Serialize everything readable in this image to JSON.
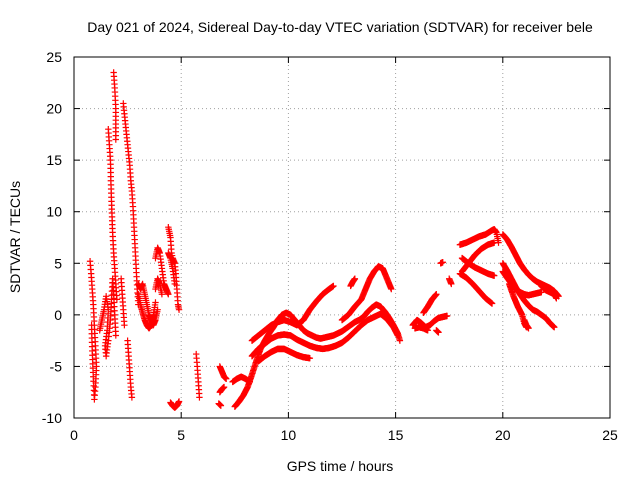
{
  "chart_data": {
    "type": "scatter",
    "title": "Day 021 of 2024, Sidereal Day-to-day VTEC variation (SDTVAR) for receiver bele",
    "xlabel": "GPS time / hours",
    "ylabel": "SDTVAR / TECUs",
    "xlim": [
      0,
      25
    ],
    "ylim": [
      -10,
      25
    ],
    "xticks": [
      0,
      5,
      10,
      15,
      20,
      25
    ],
    "yticks": [
      -10,
      -5,
      0,
      5,
      10,
      15,
      20,
      25
    ],
    "grid": true,
    "marker": "+",
    "color": "#ff0000",
    "segments": [
      [
        [
          0.75,
          5.2
        ],
        [
          0.8,
          4.0
        ],
        [
          0.85,
          2.5
        ],
        [
          0.9,
          1.0
        ],
        [
          0.95,
          -1.0
        ],
        [
          1.0,
          -3.0
        ],
        [
          1.05,
          -5.0
        ],
        [
          1.0,
          -7.0
        ],
        [
          0.95,
          -8.2
        ],
        [
          0.9,
          -6.0
        ],
        [
          0.85,
          -3.5
        ],
        [
          0.82,
          -1.0
        ]
      ],
      [
        [
          1.2,
          -1.5
        ],
        [
          1.3,
          -0.5
        ],
        [
          1.4,
          0.5
        ],
        [
          1.5,
          1.8
        ],
        [
          1.6,
          0.5
        ],
        [
          1.55,
          -1.5
        ],
        [
          1.45,
          -3.0
        ],
        [
          1.5,
          -4.0
        ],
        [
          1.6,
          -2.5
        ],
        [
          1.7,
          -0.5
        ],
        [
          1.75,
          1.5
        ],
        [
          1.8,
          3.5
        ],
        [
          1.85,
          2.0
        ],
        [
          1.9,
          0.0
        ],
        [
          1.95,
          -2.0
        ]
      ],
      [
        [
          1.6,
          18.0
        ],
        [
          1.65,
          16.5
        ],
        [
          1.7,
          15.0
        ],
        [
          1.72,
          13.0
        ],
        [
          1.75,
          11.0
        ],
        [
          1.8,
          8.0
        ],
        [
          1.85,
          6.0
        ],
        [
          1.9,
          4.5
        ],
        [
          1.95,
          3.0
        ],
        [
          2.0,
          1.5
        ]
      ],
      [
        [
          1.85,
          23.5
        ],
        [
          1.9,
          22.0
        ],
        [
          1.95,
          20.0
        ],
        [
          1.95,
          17.0
        ]
      ],
      [
        [
          2.3,
          20.5
        ],
        [
          2.35,
          19.5
        ],
        [
          2.4,
          18.5
        ],
        [
          2.45,
          17.5
        ],
        [
          2.5,
          16.5
        ],
        [
          2.55,
          15.5
        ],
        [
          2.6,
          14.5
        ],
        [
          2.65,
          13.0
        ],
        [
          2.7,
          12.0
        ],
        [
          2.75,
          10.5
        ],
        [
          2.8,
          8.5
        ],
        [
          2.85,
          6.5
        ],
        [
          2.9,
          4.5
        ],
        [
          2.95,
          2.5
        ],
        [
          3.0,
          1.0
        ]
      ],
      [
        [
          2.5,
          -2.5
        ],
        [
          2.55,
          -4.0
        ],
        [
          2.6,
          -5.5
        ],
        [
          2.65,
          -7.0
        ],
        [
          2.7,
          -8.0
        ]
      ],
      [
        [
          2.2,
          3.5
        ],
        [
          2.25,
          2.0
        ],
        [
          2.3,
          0.5
        ],
        [
          2.35,
          -1.0
        ]
      ],
      [
        [
          3.0,
          3.0
        ],
        [
          3.1,
          2.5
        ],
        [
          3.2,
          3.0
        ],
        [
          3.3,
          2.0
        ],
        [
          3.4,
          1.0
        ],
        [
          3.5,
          0.0
        ],
        [
          3.6,
          -0.5
        ],
        [
          3.7,
          -1.0
        ],
        [
          3.8,
          -0.5
        ],
        [
          3.9,
          0.5
        ]
      ],
      [
        [
          3.0,
          2.0
        ],
        [
          3.1,
          1.0
        ],
        [
          3.2,
          0.2
        ],
        [
          3.3,
          -0.5
        ],
        [
          3.4,
          -1.0
        ],
        [
          3.5,
          -1.3
        ],
        [
          3.6,
          -1.0
        ],
        [
          3.7,
          0.0
        ],
        [
          3.8,
          1.2
        ]
      ],
      [
        [
          3.8,
          5.5
        ],
        [
          3.9,
          6.5
        ],
        [
          4.0,
          6.0
        ],
        [
          4.1,
          4.5
        ],
        [
          4.2,
          3.0
        ],
        [
          4.3,
          2.5
        ],
        [
          4.4,
          2.0
        ]
      ],
      [
        [
          3.8,
          2.5
        ],
        [
          3.9,
          3.5
        ],
        [
          4.0,
          3.0
        ],
        [
          4.1,
          2.0
        ]
      ],
      [
        [
          4.4,
          8.5
        ],
        [
          4.5,
          7.5
        ],
        [
          4.55,
          6.0
        ],
        [
          4.6,
          5.5
        ],
        [
          4.7,
          5.0
        ],
        [
          4.75,
          4.0
        ],
        [
          4.8,
          2.5
        ],
        [
          4.85,
          1.0
        ],
        [
          4.9,
          0.5
        ]
      ],
      [
        [
          4.4,
          6.0
        ],
        [
          4.5,
          5.5
        ],
        [
          4.6,
          4.5
        ],
        [
          4.7,
          3.0
        ]
      ],
      [
        [
          4.5,
          -8.5
        ],
        [
          4.6,
          -8.8
        ],
        [
          4.7,
          -9.0
        ],
        [
          4.8,
          -8.8
        ],
        [
          4.9,
          -8.4
        ]
      ],
      [
        [
          5.7,
          -3.8
        ],
        [
          5.75,
          -5.0
        ],
        [
          5.8,
          -6.5
        ],
        [
          5.85,
          -8.0
        ]
      ],
      [
        [
          6.8,
          -5.0
        ],
        [
          6.9,
          -5.5
        ],
        [
          7.0,
          -6.0
        ],
        [
          7.1,
          -6.2
        ]
      ],
      [
        [
          6.8,
          -7.5
        ],
        [
          6.9,
          -7.2
        ],
        [
          7.0,
          -7.0
        ]
      ],
      [
        [
          6.75,
          -8.6
        ],
        [
          6.85,
          -8.8
        ]
      ],
      [
        [
          7.4,
          -6.5
        ],
        [
          7.6,
          -6.2
        ],
        [
          7.8,
          -6.0
        ],
        [
          8.0,
          -6.2
        ],
        [
          8.2,
          -6.5
        ]
      ],
      [
        [
          7.5,
          -8.9
        ],
        [
          7.7,
          -8.4
        ],
        [
          7.9,
          -7.8
        ],
        [
          8.1,
          -7.0
        ],
        [
          8.3,
          -5.8
        ],
        [
          8.5,
          -4.5
        ],
        [
          8.7,
          -3.3
        ],
        [
          8.9,
          -2.5
        ],
        [
          9.1,
          -1.8
        ],
        [
          9.3,
          -1.2
        ],
        [
          9.5,
          -0.5
        ],
        [
          9.7,
          0.0
        ],
        [
          9.9,
          0.2
        ],
        [
          10.1,
          0.0
        ],
        [
          10.3,
          -0.5
        ],
        [
          10.5,
          -1.0
        ],
        [
          10.7,
          -1.5
        ],
        [
          10.9,
          -1.8
        ],
        [
          11.1,
          -2.0
        ],
        [
          11.3,
          -2.2
        ],
        [
          11.5,
          -2.3
        ],
        [
          11.7,
          -2.2
        ],
        [
          11.9,
          -2.1
        ],
        [
          12.1,
          -2.0
        ],
        [
          12.3,
          -1.8
        ],
        [
          12.5,
          -1.6
        ],
        [
          12.7,
          -1.3
        ],
        [
          12.9,
          -1.0
        ],
        [
          13.1,
          -0.7
        ],
        [
          13.3,
          -0.5
        ],
        [
          13.5,
          -0.2
        ],
        [
          13.7,
          0.3
        ],
        [
          13.9,
          0.7
        ],
        [
          14.1,
          1.0
        ],
        [
          14.3,
          0.8
        ],
        [
          14.5,
          0.3
        ],
        [
          14.7,
          -0.3
        ],
        [
          14.9,
          -1.0
        ],
        [
          15.1,
          -1.8
        ],
        [
          15.2,
          -2.5
        ]
      ],
      [
        [
          8.3,
          -4.0
        ],
        [
          8.6,
          -3.3
        ],
        [
          8.9,
          -2.8
        ],
        [
          9.2,
          -2.3
        ],
        [
          9.5,
          -2.0
        ],
        [
          9.8,
          -1.9
        ],
        [
          10.1,
          -2.0
        ],
        [
          10.4,
          -2.4
        ],
        [
          10.7,
          -2.7
        ],
        [
          11.0,
          -3.0
        ],
        [
          11.3,
          -3.2
        ],
        [
          11.6,
          -3.3
        ],
        [
          11.9,
          -3.2
        ],
        [
          12.2,
          -3.0
        ],
        [
          12.5,
          -2.7
        ],
        [
          12.8,
          -2.2
        ],
        [
          13.1,
          -1.6
        ],
        [
          13.4,
          -1.0
        ],
        [
          13.7,
          -0.5
        ],
        [
          14.0,
          -0.2
        ],
        [
          14.3,
          0.1
        ],
        [
          14.6,
          -0.4
        ],
        [
          14.9,
          -1.2
        ],
        [
          15.1,
          -2.0
        ]
      ],
      [
        [
          8.3,
          -2.5
        ],
        [
          8.6,
          -2.0
        ],
        [
          8.9,
          -1.5
        ],
        [
          9.2,
          -1.0
        ],
        [
          9.5,
          -0.7
        ],
        [
          9.8,
          -0.5
        ],
        [
          10.1,
          -0.7
        ],
        [
          10.4,
          -1.0
        ]
      ],
      [
        [
          8.6,
          -4.5
        ],
        [
          8.9,
          -4.0
        ],
        [
          9.2,
          -3.6
        ],
        [
          9.5,
          -3.3
        ],
        [
          9.8,
          -3.3
        ],
        [
          10.1,
          -3.6
        ],
        [
          10.4,
          -3.9
        ],
        [
          10.7,
          -4.1
        ],
        [
          11.0,
          -4.2
        ]
      ],
      [
        [
          10.4,
          -1.0
        ],
        [
          10.7,
          -0.5
        ],
        [
          11.0,
          0.5
        ],
        [
          11.3,
          1.3
        ],
        [
          11.6,
          2.0
        ],
        [
          11.9,
          2.5
        ],
        [
          12.1,
          2.8
        ]
      ],
      [
        [
          12.5,
          -0.5
        ],
        [
          12.8,
          0.0
        ],
        [
          13.1,
          0.8
        ],
        [
          13.4,
          1.5
        ],
        [
          13.6,
          2.5
        ],
        [
          13.8,
          3.5
        ],
        [
          14.0,
          4.2
        ],
        [
          14.2,
          4.7
        ],
        [
          14.4,
          4.5
        ],
        [
          14.6,
          3.5
        ],
        [
          14.8,
          2.5
        ]
      ],
      [
        [
          12.9,
          2.8
        ],
        [
          13.0,
          3.2
        ],
        [
          13.1,
          3.5
        ]
      ],
      [
        [
          15.8,
          -1.0
        ],
        [
          16.0,
          -0.5
        ],
        [
          16.2,
          -0.8
        ],
        [
          16.4,
          -1.2
        ],
        [
          16.6,
          -1.0
        ],
        [
          16.8,
          -0.6
        ],
        [
          17.0,
          -0.3
        ],
        [
          17.2,
          -0.2
        ],
        [
          17.4,
          -0.1
        ]
      ],
      [
        [
          15.9,
          -1.3
        ],
        [
          16.1,
          -1.2
        ],
        [
          16.3,
          -1.3
        ],
        [
          16.5,
          -1.5
        ]
      ],
      [
        [
          16.3,
          0.2
        ],
        [
          16.5,
          0.8
        ],
        [
          16.7,
          1.5
        ],
        [
          16.9,
          2.0
        ]
      ],
      [
        [
          16.9,
          -1.5
        ],
        [
          17.0,
          -1.7
        ]
      ],
      [
        [
          17.1,
          5.0
        ],
        [
          17.2,
          5.1
        ]
      ],
      [
        [
          17.5,
          3.5
        ],
        [
          17.6,
          3.0
        ]
      ],
      [
        [
          18.0,
          4.0
        ],
        [
          18.3,
          3.6
        ],
        [
          18.6,
          3.0
        ],
        [
          18.9,
          2.3
        ],
        [
          19.2,
          1.6
        ],
        [
          19.5,
          1.1
        ]
      ],
      [
        [
          18.1,
          5.5
        ],
        [
          18.4,
          5.0
        ],
        [
          18.7,
          4.6
        ],
        [
          19.0,
          4.3
        ],
        [
          19.3,
          4.0
        ],
        [
          19.6,
          3.8
        ]
      ],
      [
        [
          18.0,
          6.8
        ],
        [
          18.3,
          7.0
        ],
        [
          18.6,
          7.3
        ],
        [
          18.9,
          7.6
        ],
        [
          19.2,
          7.8
        ],
        [
          19.5,
          8.2
        ],
        [
          19.6,
          8.3
        ],
        [
          19.7,
          8.0
        ],
        [
          19.8,
          7.0
        ]
      ],
      [
        [
          18.1,
          4.2
        ],
        [
          18.4,
          5.0
        ],
        [
          18.7,
          5.8
        ],
        [
          19.0,
          6.4
        ],
        [
          19.3,
          6.8
        ],
        [
          19.6,
          7.0
        ]
      ],
      [
        [
          20.0,
          7.8
        ],
        [
          20.2,
          7.3
        ],
        [
          20.4,
          6.6
        ],
        [
          20.6,
          5.8
        ],
        [
          20.8,
          5.0
        ],
        [
          21.0,
          4.4
        ],
        [
          21.2,
          3.9
        ],
        [
          21.4,
          3.5
        ],
        [
          21.6,
          3.2
        ],
        [
          21.8,
          3.0
        ],
        [
          22.0,
          2.8
        ],
        [
          22.2,
          2.6
        ],
        [
          22.4,
          2.3
        ],
        [
          22.6,
          1.8
        ]
      ],
      [
        [
          20.0,
          5.0
        ],
        [
          20.2,
          4.3
        ],
        [
          20.4,
          3.5
        ],
        [
          20.6,
          2.7
        ],
        [
          20.8,
          2.0
        ],
        [
          21.0,
          1.4
        ],
        [
          21.2,
          0.9
        ],
        [
          21.4,
          0.5
        ],
        [
          21.6,
          0.3
        ],
        [
          21.8,
          0.0
        ],
        [
          22.0,
          -0.3
        ],
        [
          22.2,
          -0.8
        ],
        [
          22.4,
          -1.2
        ]
      ],
      [
        [
          20.0,
          4.2
        ],
        [
          20.2,
          3.6
        ],
        [
          20.4,
          3.0
        ],
        [
          20.6,
          2.5
        ],
        [
          20.8,
          2.2
        ],
        [
          21.0,
          2.0
        ],
        [
          21.2,
          1.9
        ],
        [
          21.4,
          2.0
        ],
        [
          21.6,
          2.1
        ],
        [
          21.8,
          2.2
        ]
      ],
      [
        [
          20.3,
          3.0
        ],
        [
          20.5,
          1.8
        ],
        [
          20.7,
          0.8
        ],
        [
          20.9,
          0.0
        ],
        [
          21.0,
          -0.8
        ],
        [
          21.1,
          -1.2
        ]
      ],
      [
        [
          21.0,
          -0.5
        ],
        [
          21.1,
          -1.0
        ],
        [
          21.2,
          -1.3
        ]
      ],
      [
        [
          21.8,
          2.8
        ],
        [
          22.0,
          2.4
        ],
        [
          22.2,
          2.2
        ],
        [
          22.4,
          2.0
        ],
        [
          22.5,
          1.6
        ]
      ]
    ]
  }
}
